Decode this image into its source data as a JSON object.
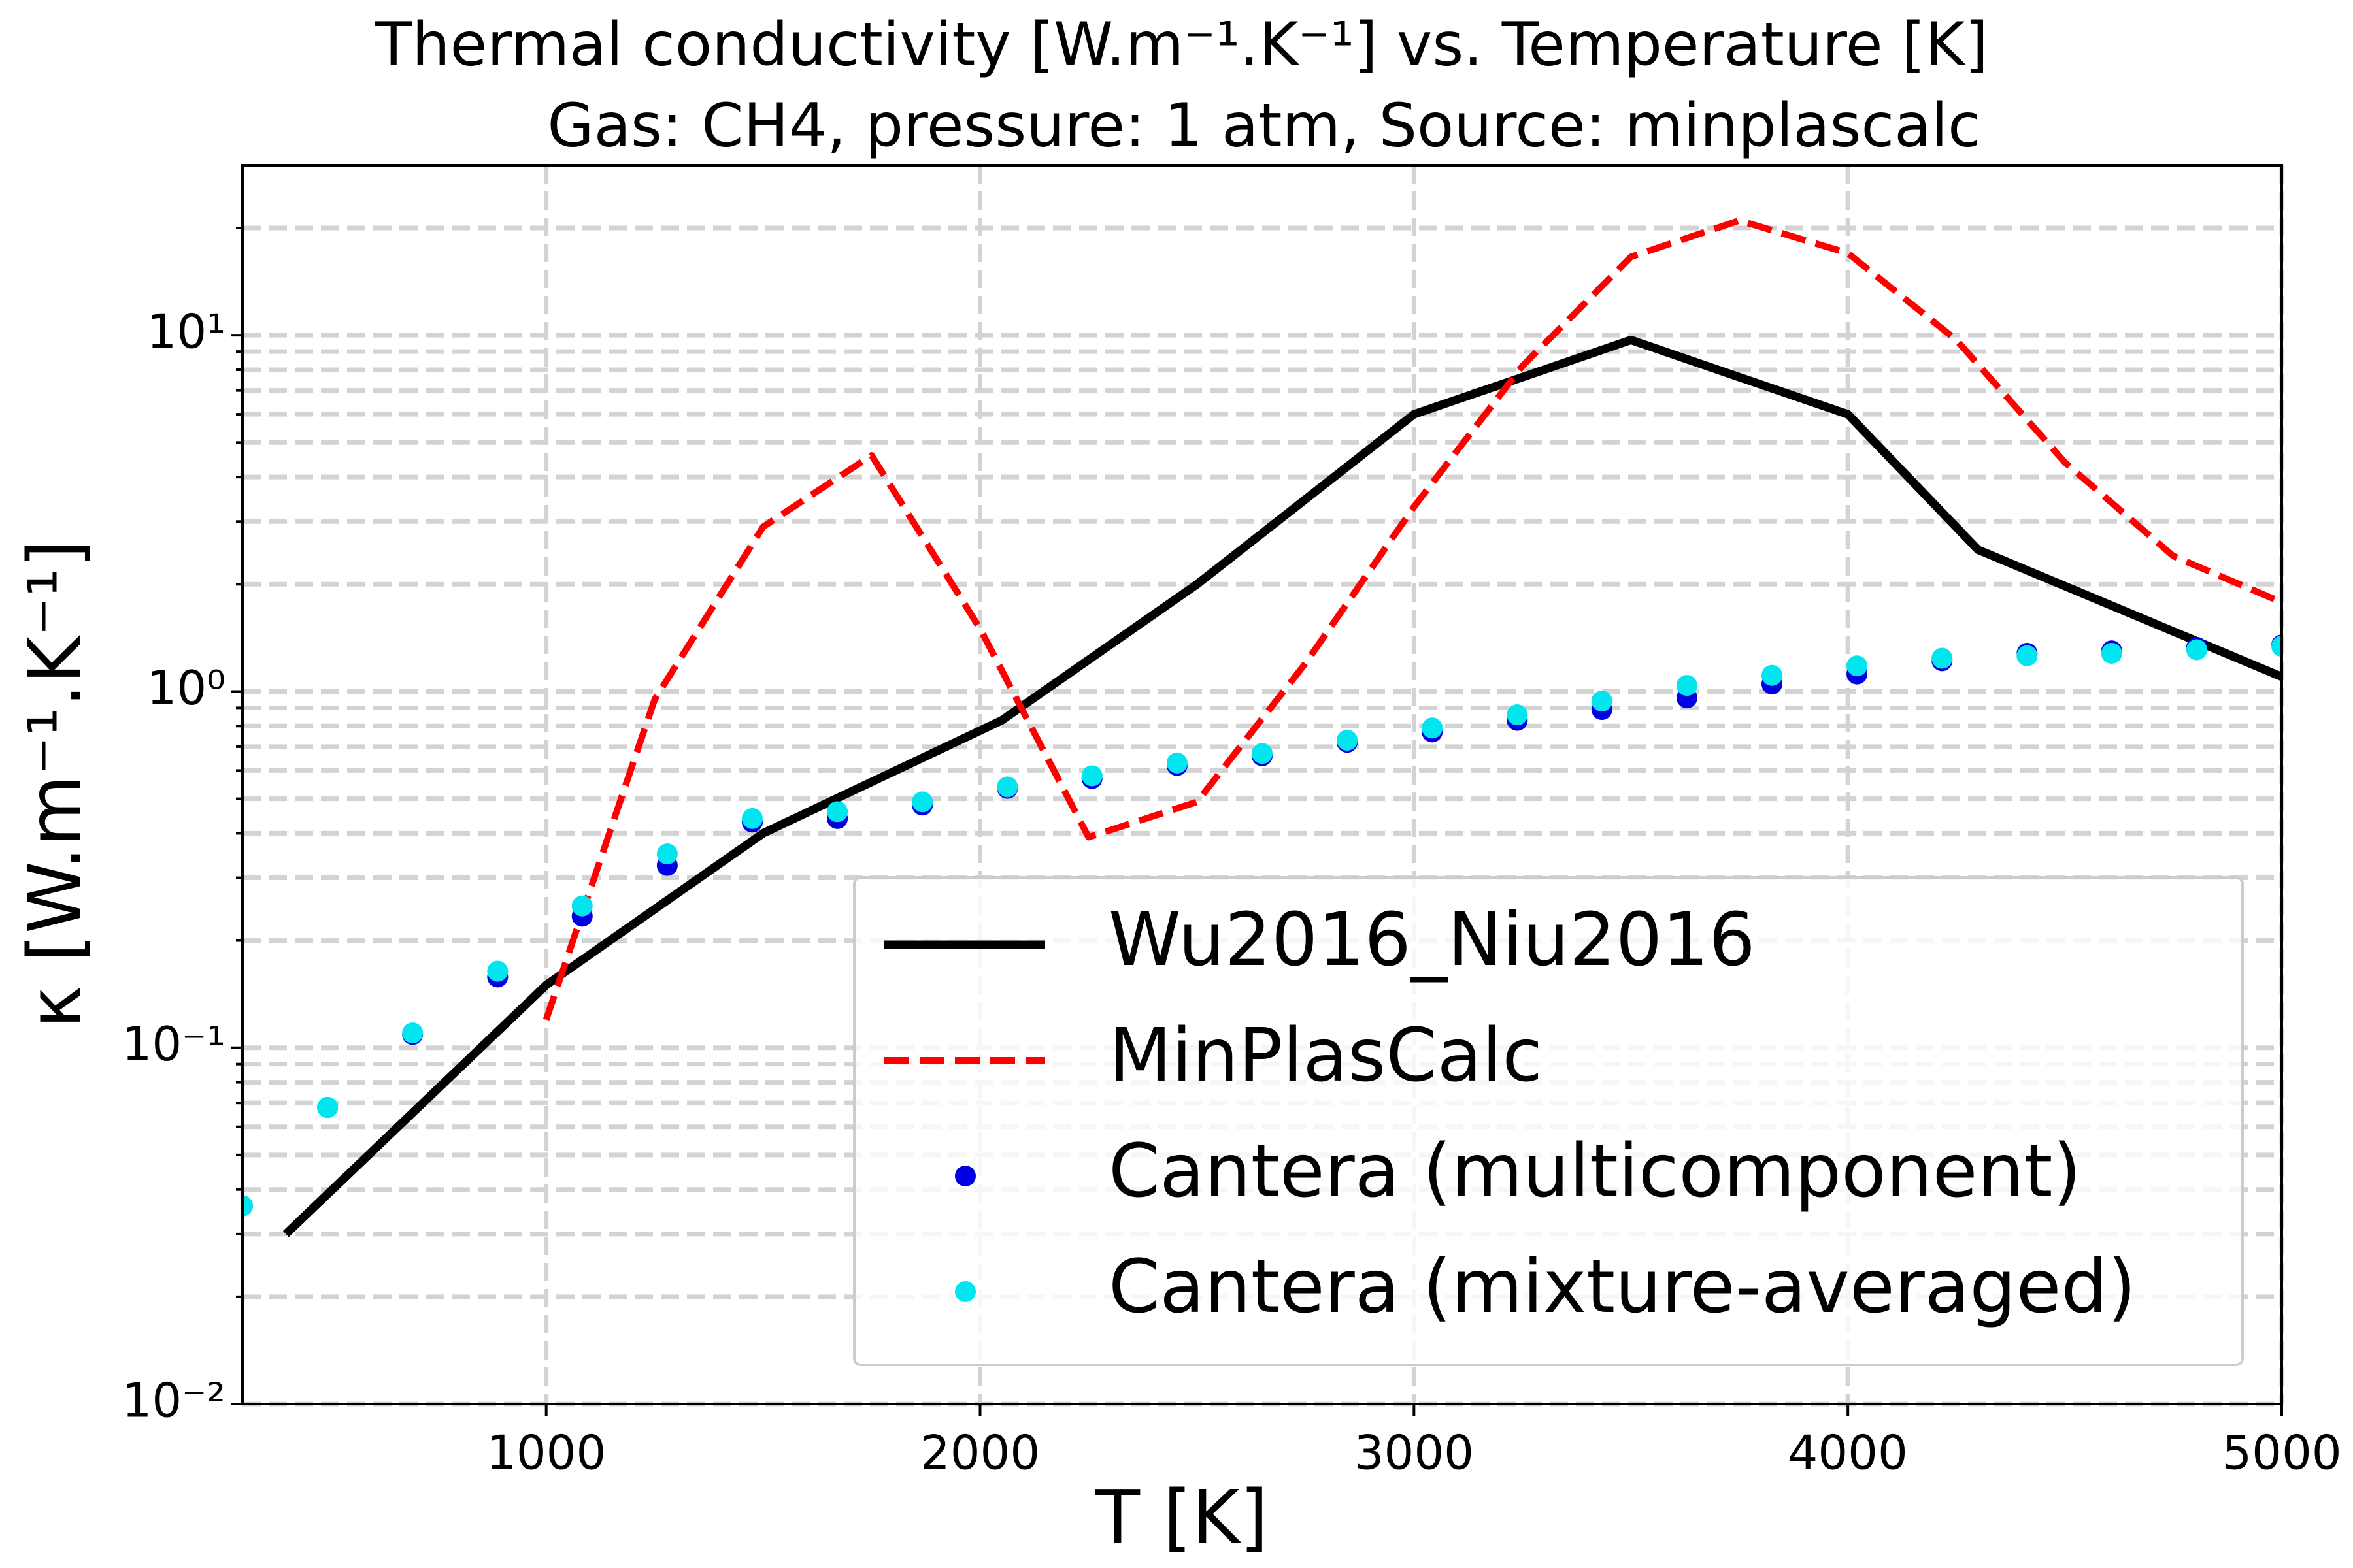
{
  "chart_data": {
    "type": "line",
    "title": "Thermal conductivity [W.m⁻¹.K⁻¹] vs. Temperature [K]",
    "subtitle": "Gas: CH4, pressure: 1 atm, Source: minplascalc",
    "x_label": "T [K]",
    "y_label": "κ [W.m⁻¹.K⁻¹]",
    "xlim": [
      300,
      5000
    ],
    "ylim": [
      0.01,
      30
    ],
    "y_log": true,
    "grid": true,
    "legend": "lower right",
    "xticks": [
      1000,
      2000,
      3000,
      4000,
      5000
    ],
    "yticks": [
      {
        "value": 0.01,
        "label": "10⁻²"
      },
      {
        "value": 0.1,
        "label": "10⁻¹"
      },
      {
        "value": 1,
        "label": "10⁰"
      },
      {
        "value": 10,
        "label": "10¹"
      }
    ],
    "yminorticks": [
      0.02,
      0.03,
      0.04,
      0.05,
      0.06,
      0.07,
      0.08,
      0.09,
      0.2,
      0.3,
      0.4,
      0.5,
      0.6,
      0.7,
      0.8,
      0.9,
      2,
      3,
      4,
      5,
      6,
      7,
      8,
      9,
      20
    ],
    "series": [
      {
        "name": "Wu2016_Niu2016",
        "style": "solid",
        "color": "#000000",
        "x": [
          400,
          1000,
          1500,
          2050,
          2500,
          3000,
          3500,
          4000,
          4300,
          5000
        ],
        "values": [
          0.03,
          0.15,
          0.4,
          0.83,
          2.0,
          6.0,
          9.7,
          6.0,
          2.5,
          1.1
        ]
      },
      {
        "name": "MinPlasCalc",
        "style": "dashed",
        "color": "#ff0000",
        "x": [
          1000,
          1250,
          1500,
          1750,
          2000,
          2250,
          2500,
          2750,
          3000,
          3250,
          3500,
          3750,
          4000,
          4250,
          4500,
          4750,
          5000
        ],
        "values": [
          0.12,
          0.95,
          2.9,
          4.6,
          1.5,
          0.39,
          0.49,
          1.2,
          3.3,
          8.2,
          16.6,
          21,
          17,
          9.7,
          4.4,
          2.4,
          1.78
        ]
      },
      {
        "name": "Cantera (multicomponent)",
        "style": "scatter",
        "color": "#0000e0",
        "x": [
          300,
          496,
          692,
          888,
          1083,
          1279,
          1475,
          1671,
          1867,
          2063,
          2258,
          2454,
          2650,
          2846,
          3042,
          3238,
          3433,
          3629,
          3825,
          4021,
          4217,
          4413,
          4608,
          4804,
          5000
        ],
        "values": [
          0.036,
          0.068,
          0.109,
          0.158,
          0.234,
          0.325,
          0.43,
          0.44,
          0.48,
          0.535,
          0.57,
          0.62,
          0.66,
          0.72,
          0.77,
          0.83,
          0.89,
          0.96,
          1.05,
          1.12,
          1.22,
          1.28,
          1.3,
          1.33,
          1.35
        ]
      },
      {
        "name": "Cantera (mixture-averaged)",
        "style": "scatter",
        "color": "#00e5ee",
        "x": [
          300,
          496,
          692,
          888,
          1083,
          1279,
          1475,
          1671,
          1867,
          2063,
          2258,
          2454,
          2650,
          2846,
          3042,
          3238,
          3433,
          3629,
          3825,
          4021,
          4217,
          4413,
          4608,
          4804,
          5000
        ],
        "values": [
          0.036,
          0.068,
          0.11,
          0.164,
          0.25,
          0.35,
          0.44,
          0.46,
          0.49,
          0.54,
          0.58,
          0.63,
          0.67,
          0.73,
          0.79,
          0.86,
          0.94,
          1.04,
          1.11,
          1.18,
          1.24,
          1.26,
          1.28,
          1.31,
          1.34
        ]
      }
    ]
  }
}
